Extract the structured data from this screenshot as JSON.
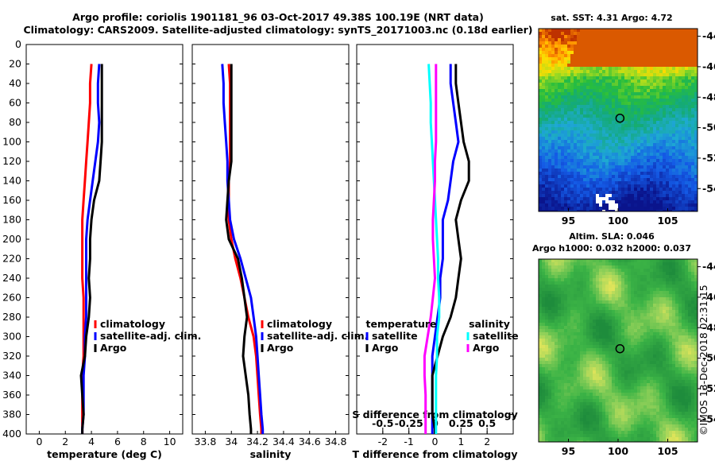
{
  "header": {
    "line1": "Argo profile: coriolis 1901181_96 03-Oct-2017 49.38S 100.19E (NRT data)",
    "line2": "Climatology: CARS2009. Satellite-adjusted climatology: synTS_20171003.nc (0.18d earlier)"
  },
  "watermark": "©IMOS 13-Dec-2018 02:31:15",
  "colors": {
    "climatology": "#ff0000",
    "satellite": "#0000ff",
    "argo": "#000000",
    "sal_satellite": "#00ffff",
    "sal_argo": "#ff00ff"
  },
  "chart_data": [
    {
      "type": "line",
      "name": "temperature-panel",
      "xlabel": "temperature (deg C)",
      "ylabel": "",
      "xlim": [
        -1,
        11
      ],
      "ylim": [
        400,
        0
      ],
      "xticks": [
        "0",
        "2",
        "4",
        "6",
        "8",
        "10"
      ],
      "legend_position": "bottom-right",
      "series": [
        {
          "name": "climatology",
          "color": "#ff0000",
          "x": [
            4.0,
            3.9,
            3.9,
            3.8,
            3.7,
            3.6,
            3.5,
            3.4,
            3.3,
            3.3,
            3.3,
            3.3,
            3.4,
            3.4,
            3.4,
            3.4,
            3.3,
            3.3,
            3.3,
            3.3,
            3.3
          ],
          "y": [
            20,
            40,
            60,
            80,
            100,
            120,
            140,
            160,
            180,
            200,
            220,
            240,
            260,
            280,
            300,
            320,
            340,
            360,
            380,
            395,
            400
          ]
        },
        {
          "name": "satellite-adj. clim.",
          "color": "#0000ff",
          "x": [
            4.6,
            4.5,
            4.5,
            4.6,
            4.5,
            4.3,
            4.1,
            3.9,
            3.7,
            3.6,
            3.6,
            3.6,
            3.6,
            3.6,
            3.5,
            3.5,
            3.4,
            3.4,
            3.4,
            3.3,
            3.3
          ],
          "y": [
            20,
            40,
            60,
            80,
            100,
            120,
            140,
            160,
            180,
            200,
            220,
            240,
            260,
            280,
            300,
            320,
            340,
            360,
            380,
            395,
            400
          ]
        },
        {
          "name": "Argo",
          "color": "#000000",
          "x": [
            4.8,
            4.8,
            4.8,
            4.8,
            4.8,
            4.7,
            4.6,
            4.2,
            4.0,
            3.9,
            3.9,
            3.8,
            3.9,
            3.8,
            3.6,
            3.5,
            3.2,
            3.3,
            3.4,
            3.3,
            3.3
          ],
          "y": [
            20,
            40,
            60,
            80,
            100,
            120,
            140,
            160,
            180,
            200,
            220,
            240,
            260,
            280,
            300,
            320,
            340,
            360,
            380,
            395,
            400
          ]
        }
      ]
    },
    {
      "type": "line",
      "name": "salinity-panel",
      "xlabel": "salinity",
      "xlim": [
        33.7,
        34.9
      ],
      "ylim": [
        400,
        0
      ],
      "xticks": [
        "33.8",
        "34",
        "34.2",
        "34.4",
        "34.6",
        "34.8"
      ],
      "legend_position": "bottom-right",
      "series": [
        {
          "name": "climatology",
          "color": "#ff0000",
          "x": [
            33.98,
            33.99,
            33.99,
            33.99,
            33.99,
            33.99,
            33.98,
            33.98,
            33.98,
            34.0,
            34.03,
            34.07,
            34.1,
            34.13,
            34.17,
            34.19,
            34.2,
            34.21,
            34.22,
            34.23,
            34.23
          ],
          "y": [
            20,
            40,
            60,
            80,
            100,
            120,
            140,
            160,
            180,
            200,
            220,
            240,
            260,
            280,
            300,
            320,
            340,
            360,
            380,
            395,
            400
          ]
        },
        {
          "name": "satellite-adj. clim.",
          "color": "#0000ff",
          "x": [
            33.93,
            33.94,
            33.94,
            33.95,
            33.96,
            33.97,
            33.97,
            33.98,
            33.99,
            34.02,
            34.07,
            34.11,
            34.15,
            34.17,
            34.19,
            34.2,
            34.21,
            34.22,
            34.23,
            34.24,
            34.24
          ],
          "y": [
            20,
            40,
            60,
            80,
            100,
            120,
            140,
            160,
            180,
            200,
            220,
            240,
            260,
            280,
            300,
            320,
            340,
            360,
            380,
            395,
            400
          ]
        },
        {
          "name": "Argo",
          "color": "#000000",
          "x": [
            34.0,
            34.0,
            34.0,
            34.0,
            34.0,
            34.0,
            33.98,
            33.97,
            33.96,
            33.98,
            34.05,
            34.08,
            34.1,
            34.12,
            34.1,
            34.09,
            34.11,
            34.13,
            34.14,
            34.15,
            34.15
          ],
          "y": [
            20,
            40,
            60,
            80,
            100,
            120,
            140,
            160,
            180,
            200,
            220,
            240,
            260,
            280,
            300,
            320,
            340,
            360,
            380,
            395,
            400
          ]
        }
      ]
    },
    {
      "type": "line",
      "name": "difference-panel",
      "xlabel": "T difference from climatology",
      "xlabel_top": "S difference from climatology",
      "xlim": [
        -3,
        3
      ],
      "ylim": [
        400,
        0
      ],
      "xticks": [
        "-2",
        "-1",
        "0",
        "1",
        "2"
      ],
      "sticks": [
        "-0.5",
        "-0.25",
        "0",
        "0.25",
        "0.5"
      ],
      "legend_temperature_title": "temperature",
      "legend_salinity_title": "salinity",
      "legend_position": "bottom",
      "series": [
        {
          "name": "satellite",
          "group": "temperature",
          "color": "#0000ff",
          "x": [
            0.6,
            0.6,
            0.7,
            0.8,
            0.9,
            0.7,
            0.6,
            0.5,
            0.3,
            0.3,
            0.3,
            0.2,
            0.2,
            0.1,
            0.0,
            -0.1,
            -0.1,
            -0.1,
            -0.1,
            -0.1,
            -0.1
          ],
          "y": [
            20,
            40,
            60,
            80,
            100,
            120,
            140,
            160,
            180,
            200,
            220,
            240,
            260,
            280,
            300,
            320,
            340,
            360,
            380,
            395,
            400
          ]
        },
        {
          "name": "Argo",
          "group": "temperature",
          "color": "#000000",
          "x": [
            0.8,
            0.8,
            0.9,
            1.0,
            1.1,
            1.3,
            1.3,
            1.0,
            0.8,
            0.9,
            1.0,
            0.9,
            0.8,
            0.6,
            0.3,
            0.1,
            -0.1,
            -0.1,
            -0.1,
            0.0,
            0.0
          ],
          "y": [
            20,
            40,
            60,
            80,
            100,
            120,
            140,
            160,
            180,
            200,
            220,
            240,
            260,
            280,
            300,
            320,
            340,
            360,
            380,
            395,
            400
          ]
        },
        {
          "name": "satellite",
          "group": "salinity",
          "color": "#00ffff",
          "x": [
            -0.06,
            -0.05,
            -0.04,
            -0.04,
            -0.03,
            -0.02,
            -0.01,
            0.0,
            0.01,
            0.02,
            0.03,
            0.03,
            0.04,
            0.04,
            0.02,
            0.02,
            0.01,
            0.01,
            0.01,
            0.01,
            0.01
          ],
          "y": [
            20,
            40,
            60,
            80,
            100,
            120,
            140,
            160,
            180,
            200,
            220,
            240,
            260,
            280,
            300,
            320,
            340,
            360,
            380,
            395,
            400
          ]
        },
        {
          "name": "Argo",
          "group": "salinity",
          "color": "#ff00ff",
          "x": [
            0.01,
            0.01,
            0.01,
            0.01,
            0.01,
            0.0,
            0.0,
            -0.01,
            -0.02,
            -0.02,
            -0.01,
            0.0,
            -0.02,
            -0.04,
            -0.07,
            -0.1,
            -0.1,
            -0.09,
            -0.09,
            -0.09,
            -0.09
          ],
          "y": [
            20,
            40,
            60,
            80,
            100,
            120,
            140,
            160,
            180,
            200,
            220,
            240,
            260,
            280,
            300,
            320,
            340,
            360,
            380,
            395,
            400
          ]
        }
      ]
    },
    {
      "type": "heatmap",
      "name": "sst-map",
      "title": "sat. SST: 4.31 Argo: 4.72",
      "xlim": [
        92,
        108
      ],
      "ylim": [
        -55.5,
        -43.5
      ],
      "xticks": [
        "95",
        "100",
        "105"
      ],
      "yticks": [
        "-44",
        "-46",
        "-48",
        "-50",
        "-52",
        "-54"
      ],
      "marker": {
        "lon": 100.19,
        "lat": -49.38
      }
    },
    {
      "type": "heatmap",
      "name": "sla-map",
      "title": "Altim. SLA: 0.046",
      "subtitle": "Argo h1000: 0.032 h2000: 0.037",
      "xlim": [
        92,
        108
      ],
      "ylim": [
        -55.5,
        -43.5
      ],
      "xticks": [
        "95",
        "100",
        "105"
      ],
      "yticks": [
        "-44",
        "-46",
        "-48",
        "-50",
        "-52",
        "-54"
      ],
      "marker": {
        "lon": 100.19,
        "lat": -49.38
      }
    }
  ],
  "depth_ticks": [
    "0",
    "20",
    "40",
    "60",
    "80",
    "100",
    "120",
    "140",
    "160",
    "180",
    "200",
    "220",
    "240",
    "260",
    "280",
    "300",
    "320",
    "340",
    "360",
    "380",
    "400"
  ]
}
